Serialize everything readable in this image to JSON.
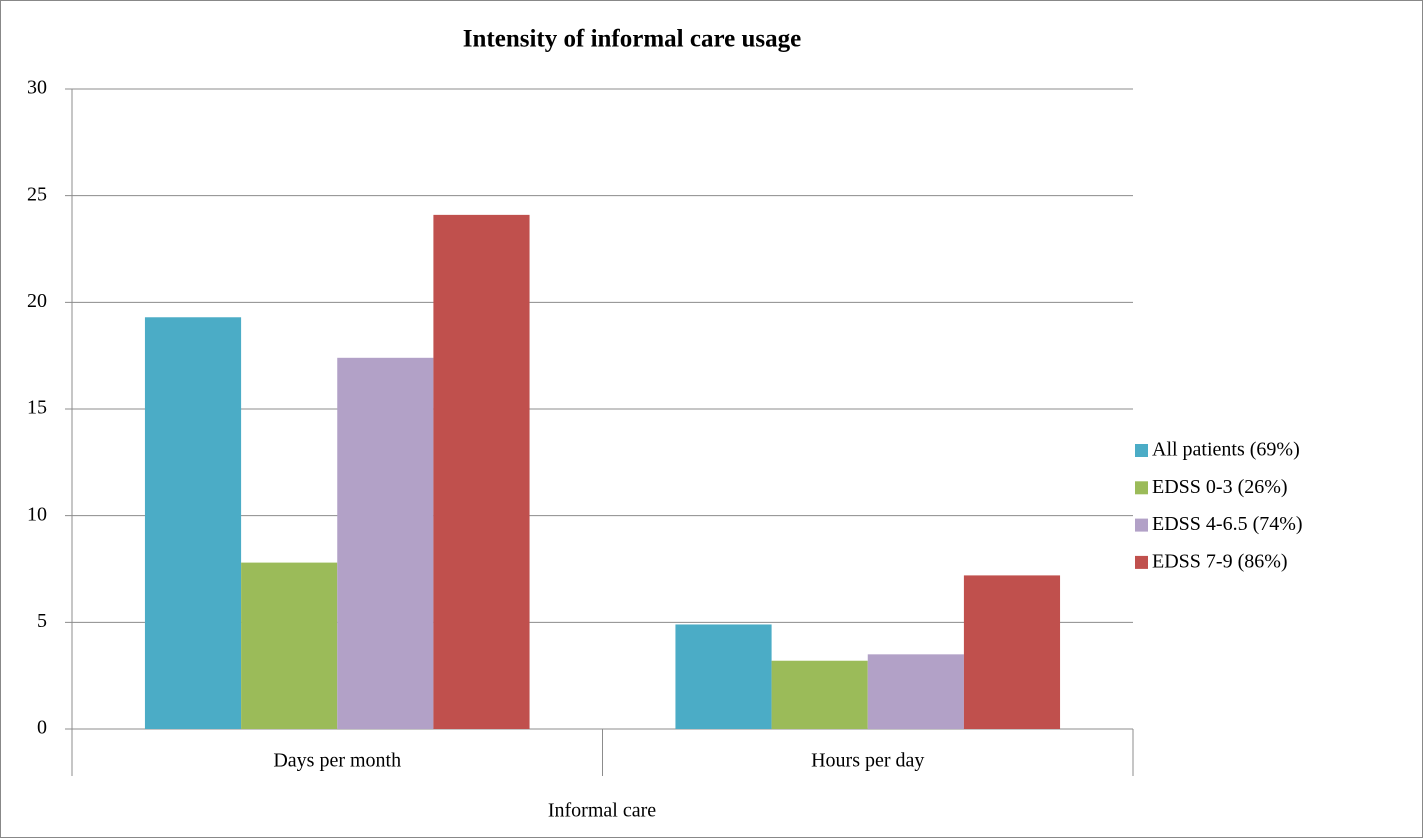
{
  "chart_data": {
    "type": "bar",
    "title": "Intensity of informal care usage",
    "x_label": "Informal care",
    "categories": [
      "Days per month",
      "Hours per day"
    ],
    "series": [
      {
        "name": "All patients (69%)",
        "color": "#4bacc6",
        "values": [
          19.3,
          4.9
        ]
      },
      {
        "name": "EDSS 0-3 (26%)",
        "color": "#9bbb59",
        "values": [
          7.8,
          3.2
        ]
      },
      {
        "name": "EDSS 4-6.5 (74%)",
        "color": "#b2a1c7",
        "values": [
          17.4,
          3.5
        ]
      },
      {
        "name": "EDSS 7-9 (86%)",
        "color": "#c0504d",
        "values": [
          24.1,
          7.2
        ]
      }
    ],
    "ylim": [
      0,
      30
    ],
    "yticks": [
      0,
      5,
      10,
      15,
      20,
      25,
      30
    ],
    "grid": true,
    "legend": "right"
  }
}
